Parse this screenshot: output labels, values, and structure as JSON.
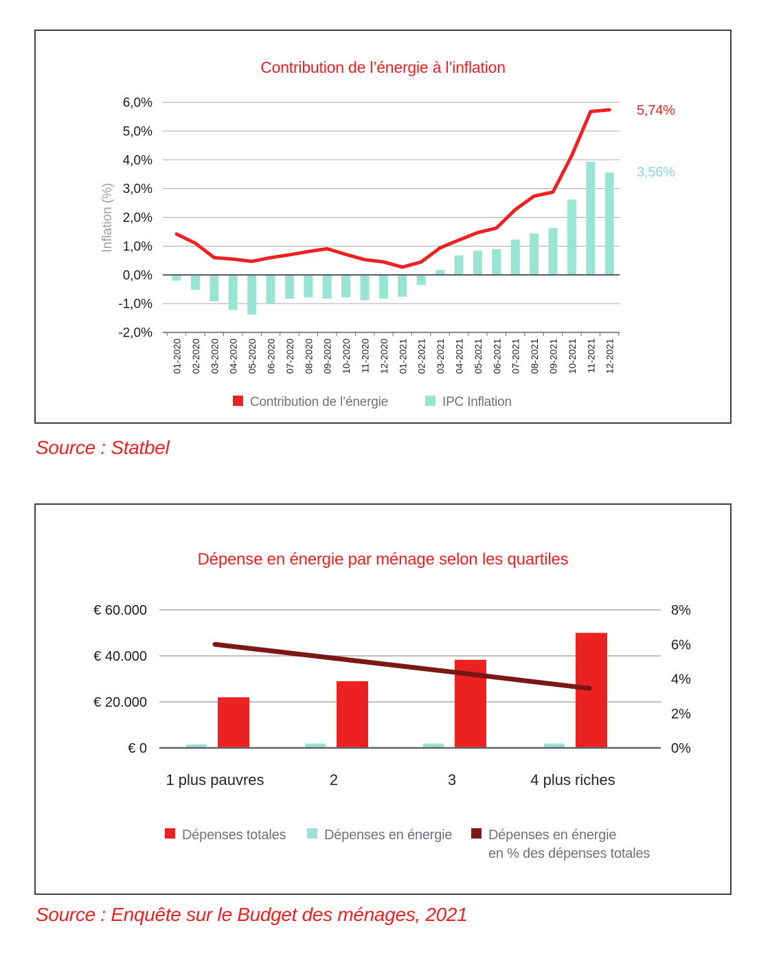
{
  "colors": {
    "red": "#ec2121",
    "teal": "#9ae4d3",
    "teal_text": "#8ed8c9",
    "dark_red": "#7b1714",
    "grid": "#a9a9a9",
    "zero_line": "#5f6468",
    "axis_text": "#1d1d1b",
    "category_text": "#26262a",
    "muted_text": "#6e7378",
    "panel_border": "#3f3f3f"
  },
  "chart_data": [
    {
      "type": "combo-bar-line",
      "title": "Contribution de l’énergie à l’inflation",
      "ylabel": "Inflation (%)",
      "ylim": [
        -2.0,
        6.0
      ],
      "ytick_step": 1.0,
      "ytick_labels": [
        "6,0%",
        "5,0%",
        "4,0%",
        "3,0%",
        "2,0%",
        "1,0%",
        "0,0%",
        "-1,0%",
        "-2,0%"
      ],
      "grid": true,
      "legend_position": "bottom",
      "categories": [
        "01-2020",
        "02-2020",
        "03-2020",
        "04-2020",
        "05-2020",
        "06-2020",
        "07-2020",
        "08-2020",
        "09-2020",
        "10-2020",
        "11-2020",
        "12-2020",
        "01-2021",
        "02-2021",
        "03-2021",
        "04-2021",
        "05-2021",
        "06-2021",
        "07-2021",
        "08-2021",
        "09-2021",
        "10-2021",
        "11-2021",
        "12-2021"
      ],
      "series": [
        {
          "name": "Contribution de l’énergie",
          "type": "line",
          "color_key": "red",
          "values": [
            1.42,
            1.1,
            0.6,
            0.55,
            0.47,
            0.6,
            0.7,
            0.81,
            0.91,
            0.71,
            0.53,
            0.45,
            0.27,
            0.45,
            0.94,
            1.21,
            1.47,
            1.63,
            2.27,
            2.74,
            2.88,
            4.15,
            5.68,
            5.74
          ],
          "end_label": "5,74%"
        },
        {
          "name": "IPC Inflation",
          "type": "bar",
          "color_key": "teal",
          "values": [
            -0.2,
            -0.52,
            -0.92,
            -1.22,
            -1.38,
            -1.0,
            -0.83,
            -0.78,
            -0.83,
            -0.78,
            -0.88,
            -0.83,
            -0.76,
            -0.35,
            0.17,
            0.68,
            0.84,
            0.9,
            1.23,
            1.44,
            1.63,
            2.62,
            3.93,
            3.56
          ],
          "end_label": "3,56%"
        }
      ],
      "legend": [
        {
          "label": "Contribution de l’énergie"
        },
        {
          "label": "IPC Inflation"
        }
      ],
      "source": "Source : Statbel"
    },
    {
      "type": "combo-bar-line",
      "title": "Dépense en énergie par ménage selon les quartiles",
      "categories": [
        "1 plus pauvres",
        "2",
        "3",
        "4 plus riches"
      ],
      "left_axis": {
        "lim": [
          0,
          60000
        ],
        "tick_labels": [
          "€ 60.000",
          "€ 40.000",
          "€ 20.000",
          "€ 0"
        ],
        "tick_values": [
          60000,
          40000,
          20000,
          0
        ]
      },
      "right_axis": {
        "lim": [
          0,
          8
        ],
        "tick_labels": [
          "8%",
          "6%",
          "4%",
          "2%",
          "0%"
        ],
        "tick_values": [
          8,
          6,
          4,
          2,
          0
        ]
      },
      "grid": true,
      "legend_position": "bottom",
      "series": [
        {
          "name": "Dépenses totales",
          "type": "bar",
          "axis": "left",
          "color_key": "red",
          "values": [
            22000,
            29000,
            38300,
            50000
          ]
        },
        {
          "name": "Dépenses en énergie",
          "type": "bar",
          "axis": "left",
          "color_key": "teal",
          "values": [
            1500,
            1900,
            1900,
            1900
          ]
        },
        {
          "name": "Dépenses en énergie en % des dépenses totales",
          "type": "line",
          "axis": "right",
          "color_key": "dark_red",
          "values": [
            6.0,
            5.2,
            4.4,
            3.45
          ]
        }
      ],
      "legend": [
        {
          "label": "Dépenses totales"
        },
        {
          "label": "Dépenses en énergie"
        },
        {
          "label": "Dépenses en énergie",
          "label2": "en % des dépenses totales"
        }
      ],
      "source": "Source : Enquête sur le Budget des ménages, 2021"
    }
  ]
}
